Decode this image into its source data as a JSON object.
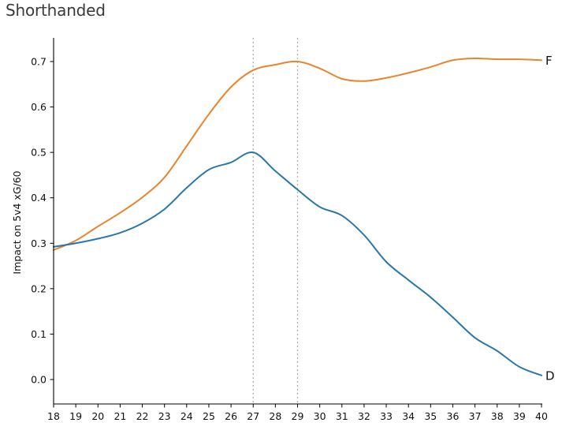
{
  "chart_data": {
    "type": "line",
    "title": "Shorthanded",
    "xlabel": "",
    "ylabel": "Impact on 5v4 xG/60",
    "x": [
      18,
      19,
      20,
      21,
      22,
      23,
      24,
      25,
      26,
      27,
      28,
      29,
      30,
      31,
      32,
      33,
      34,
      35,
      36,
      37,
      38,
      39,
      40
    ],
    "xlim": [
      18,
      40
    ],
    "ylim": [
      -0.055,
      0.755
    ],
    "xticks": [
      "18",
      "19",
      "20",
      "21",
      "22",
      "23",
      "24",
      "25",
      "26",
      "27",
      "28",
      "29",
      "30",
      "31",
      "32",
      "33",
      "34",
      "35",
      "36",
      "37",
      "38",
      "39",
      "40"
    ],
    "yticks": [
      "0.0",
      "0.1",
      "0.2",
      "0.3",
      "0.4",
      "0.5",
      "0.6",
      "0.7"
    ],
    "yticks_values": [
      0.0,
      0.1,
      0.2,
      0.3,
      0.4,
      0.5,
      0.6,
      0.7
    ],
    "grid": false,
    "reference_lines": [
      {
        "type": "vertical",
        "x": 27,
        "style": "dotted",
        "color": "#b0b0b0"
      },
      {
        "type": "vertical",
        "x": 29,
        "style": "dotted",
        "color": "#b0b0b0"
      }
    ],
    "series": [
      {
        "name": "F",
        "color": "#e8842c",
        "values": [
          0.285,
          0.306,
          0.337,
          0.367,
          0.401,
          0.445,
          0.514,
          0.584,
          0.644,
          0.681,
          0.693,
          0.7,
          0.685,
          0.662,
          0.657,
          0.664,
          0.675,
          0.688,
          0.703,
          0.707,
          0.705,
          0.705,
          0.703
        ]
      },
      {
        "name": "D",
        "color": "#2a78a8",
        "values": [
          0.292,
          0.3,
          0.31,
          0.323,
          0.344,
          0.375,
          0.422,
          0.462,
          0.478,
          0.5,
          0.459,
          0.418,
          0.38,
          0.361,
          0.318,
          0.259,
          0.219,
          0.181,
          0.137,
          0.092,
          0.063,
          0.028,
          0.009
        ]
      }
    ],
    "annotations": [
      {
        "text": "F",
        "position": "end of F series"
      },
      {
        "text": "D",
        "position": "end of D series"
      }
    ]
  }
}
